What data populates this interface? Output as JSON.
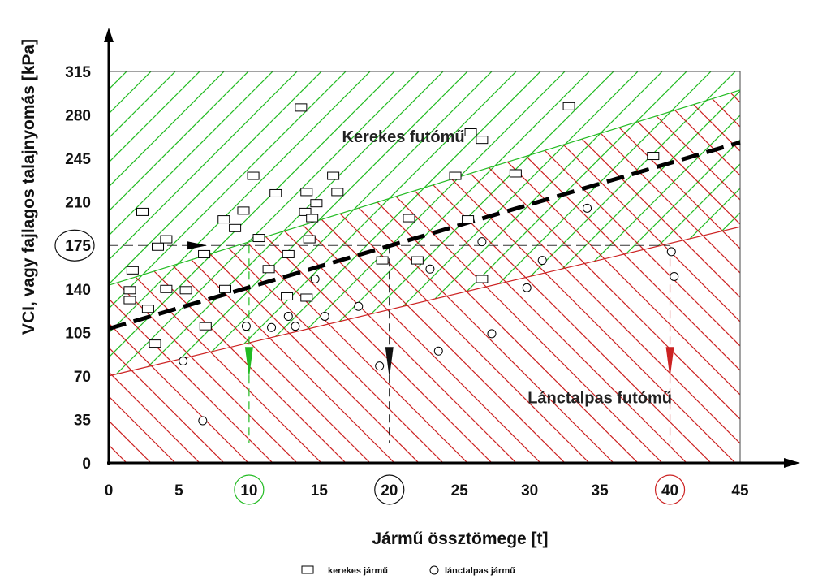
{
  "chart_data": {
    "type": "scatter",
    "xlabel": "Jármű össztömege [t]",
    "ylabel": "VCI, vagy fajlagos talajnyomás [kPa]",
    "xlim": [
      0,
      45
    ],
    "ylim": [
      0,
      315
    ],
    "x_ticks": [
      "0",
      "5",
      "10",
      "15",
      "20",
      "25",
      "30",
      "35",
      "40",
      "45"
    ],
    "y_ticks": [
      "0",
      "35",
      "70",
      "105",
      "140",
      "175",
      "210",
      "245",
      "280",
      "315"
    ],
    "highlighted_x_ticks": [
      {
        "value": 10,
        "color": "#22bb22"
      },
      {
        "value": 20,
        "color": "#111111"
      },
      {
        "value": 40,
        "color": "#cc2222"
      }
    ],
    "highlighted_y_ticks": [
      175
    ],
    "regions": [
      {
        "label": "Kerekes futómű",
        "hatch_color": "#22bb22",
        "boundary_start": [
          0,
          70
        ],
        "boundary_end": [
          45,
          190
        ],
        "text_at": [
          21,
          258
        ]
      },
      {
        "label": "Lánctalpas futómű",
        "hatch_color": "#cc2222",
        "boundary_start": [
          0,
          143
        ],
        "boundary_end": [
          45,
          300
        ],
        "text_at": [
          35,
          48
        ]
      }
    ],
    "trend_line": {
      "from": [
        0,
        108
      ],
      "to": [
        45,
        258
      ],
      "style": "dashed-bold"
    },
    "reference_line": {
      "y": 175,
      "x_range": [
        0,
        40
      ]
    },
    "vertical_markers": [
      {
        "x": 10,
        "color": "#22bb22",
        "arrow_y": 75
      },
      {
        "x": 20,
        "color": "#111111",
        "arrow_y": 75
      },
      {
        "x": 40,
        "color": "#cc2222",
        "arrow_y": 75
      }
    ],
    "series": [
      {
        "name": "kerekes jármű",
        "marker": "rectangle",
        "points": [
          [
            1.7,
            155
          ],
          [
            1.5,
            139
          ],
          [
            1.5,
            131
          ],
          [
            2.4,
            202
          ],
          [
            2.8,
            124
          ],
          [
            3.3,
            96
          ],
          [
            3.5,
            174
          ],
          [
            4.1,
            180
          ],
          [
            4.1,
            140
          ],
          [
            5.5,
            139
          ],
          [
            6.8,
            168
          ],
          [
            6.9,
            110
          ],
          [
            8.2,
            196
          ],
          [
            8.3,
            140
          ],
          [
            9.0,
            189
          ],
          [
            9.6,
            203
          ],
          [
            10.3,
            231
          ],
          [
            10.7,
            181
          ],
          [
            11.4,
            156
          ],
          [
            11.9,
            217
          ],
          [
            12.7,
            134
          ],
          [
            12.8,
            168
          ],
          [
            13.7,
            286
          ],
          [
            14.0,
            202
          ],
          [
            14.1,
            218
          ],
          [
            14.1,
            133
          ],
          [
            14.3,
            180
          ],
          [
            14.5,
            197
          ],
          [
            14.8,
            209
          ],
          [
            16.0,
            231
          ],
          [
            16.3,
            218
          ],
          [
            19.5,
            163
          ],
          [
            21.4,
            197
          ],
          [
            22.0,
            163
          ],
          [
            24.7,
            231
          ],
          [
            25.6,
            196
          ],
          [
            25.8,
            266
          ],
          [
            26.6,
            260
          ],
          [
            26.6,
            148
          ],
          [
            29.0,
            233
          ],
          [
            32.8,
            287
          ],
          [
            38.8,
            247
          ]
        ]
      },
      {
        "name": "lánctalpas jármű",
        "marker": "circle",
        "points": [
          [
            5.3,
            82
          ],
          [
            6.7,
            34
          ],
          [
            9.8,
            110
          ],
          [
            11.6,
            109
          ],
          [
            12.8,
            118
          ],
          [
            13.3,
            110
          ],
          [
            14.7,
            148
          ],
          [
            15.4,
            118
          ],
          [
            17.8,
            126
          ],
          [
            19.3,
            78
          ],
          [
            22.9,
            156
          ],
          [
            23.5,
            90
          ],
          [
            26.6,
            178
          ],
          [
            27.3,
            104
          ],
          [
            29.8,
            141
          ],
          [
            30.9,
            163
          ],
          [
            34.1,
            205
          ],
          [
            40.1,
            170
          ],
          [
            40.3,
            150
          ]
        ]
      }
    ]
  },
  "legend": {
    "items": [
      {
        "label": "kerekes jármű",
        "marker": "rectangle"
      },
      {
        "label": "lánctalpas jármű",
        "marker": "circle"
      }
    ]
  }
}
